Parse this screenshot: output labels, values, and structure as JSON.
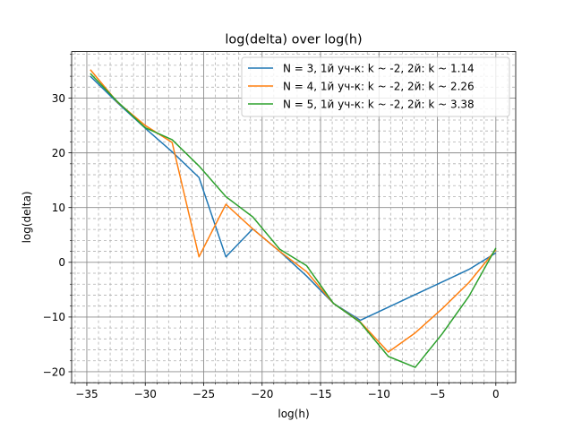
{
  "chart_data": {
    "type": "line",
    "title": "log(delta) over log(h)",
    "xlabel": "log(h)",
    "ylabel": "log(delta)",
    "xlim": [
      -36.3,
      1.7
    ],
    "ylim": [
      -22,
      38.5
    ],
    "xticks": [
      -35,
      -30,
      -25,
      -20,
      -15,
      -10,
      -5,
      0
    ],
    "xtick_labels": [
      "−35",
      "−30",
      "−25",
      "−20",
      "−15",
      "−10",
      "−5",
      "0"
    ],
    "yticks": [
      -20,
      -10,
      0,
      10,
      20,
      30
    ],
    "ytick_labels": [
      "−20",
      "−10",
      "0",
      "10",
      "20",
      "30"
    ],
    "grid": {
      "major": true,
      "minor": true
    },
    "legend_position": "upper-right",
    "x": [
      -34.7,
      -32.4,
      -30.0,
      -27.7,
      -25.4,
      -23.1,
      -20.8,
      -18.5,
      -16.2,
      -13.9,
      -11.6,
      -9.2,
      -6.9,
      -4.6,
      -2.3,
      0.0
    ],
    "series": [
      {
        "name": "N = 3, 1й уч-к: k ~ -2, 2й: k ~ 1.14",
        "color": "#1f77b4",
        "values": [
          34.0,
          29.2,
          24.5,
          20.2,
          15.5,
          1.0,
          6.1,
          2.0,
          -2.5,
          -7.5,
          -10.6,
          -8.2,
          -5.9,
          -3.6,
          -1.3,
          1.7
        ]
      },
      {
        "name": "N = 4, 1й уч-к: k ~ -2, 2й: k ~ 2.26",
        "color": "#ff7f0e",
        "values": [
          35.2,
          29.3,
          25.0,
          21.9,
          1.0,
          10.6,
          6.1,
          2.0,
          -1.7,
          -7.5,
          -10.9,
          -16.4,
          -12.9,
          -8.5,
          -3.7,
          2.3
        ]
      },
      {
        "name": "N = 5, 1й уч-к: k ~ -2, 2й: k ~ 3.38",
        "color": "#2ca02c",
        "values": [
          34.5,
          29.4,
          24.6,
          22.4,
          17.6,
          12.0,
          8.3,
          2.4,
          -0.6,
          -7.5,
          -11.0,
          -17.2,
          -19.2,
          -13.1,
          -6.2,
          2.6
        ]
      }
    ]
  }
}
